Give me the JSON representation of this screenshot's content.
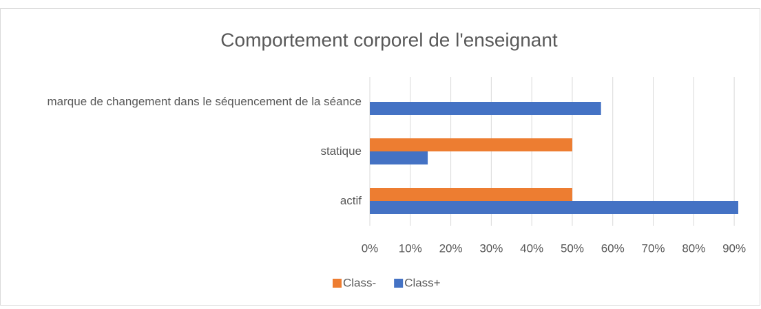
{
  "chart_data": {
    "type": "hbar",
    "title": "Comportement corporel de l'enseignant",
    "categories": [
      "marque de changement dans le séquencement de la séance",
      "statique",
      "actif"
    ],
    "series": [
      {
        "name": "Class-",
        "color": "#ed7d31",
        "values": [
          0,
          50,
          50
        ]
      },
      {
        "name": "Class+",
        "color": "#4472c4",
        "values": [
          57.1,
          14.3,
          91
        ]
      }
    ],
    "xlim": [
      0,
      91
    ],
    "xticks": [
      {
        "value": 0,
        "label": "0%"
      },
      {
        "value": 10,
        "label": "10%"
      },
      {
        "value": 20,
        "label": "20%"
      },
      {
        "value": 30,
        "label": "30%"
      },
      {
        "value": 40,
        "label": "40%"
      },
      {
        "value": 50,
        "label": "50%"
      },
      {
        "value": 60,
        "label": "60%"
      },
      {
        "value": 70,
        "label": "70%"
      },
      {
        "value": 80,
        "label": "80%"
      },
      {
        "value": 90,
        "label": "90%"
      }
    ],
    "grid": true,
    "legend": "bottom"
  }
}
